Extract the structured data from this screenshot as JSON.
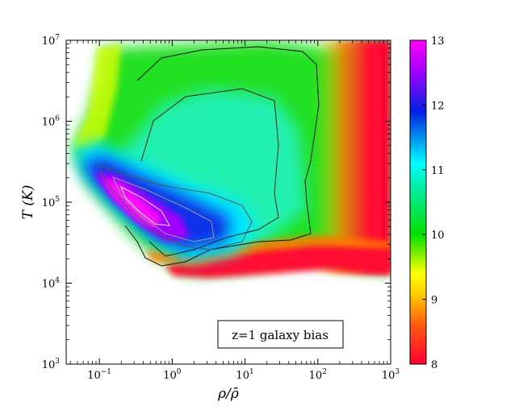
{
  "chart_data": {
    "type": "heatmap",
    "xlabel": "ρ/ρ̄",
    "ylabel": "T (K)",
    "x_scale": "log",
    "y_scale": "log",
    "xlim": [
      0.035,
      1000
    ],
    "ylim": [
      1000,
      10000000
    ],
    "x_ticks": [
      {
        "value": 0.1,
        "base": "10",
        "exp": "−1"
      },
      {
        "value": 1,
        "base": "10",
        "exp": "0"
      },
      {
        "value": 10,
        "base": "10",
        "exp": "1"
      },
      {
        "value": 100,
        "base": "10",
        "exp": "2"
      },
      {
        "value": 1000,
        "base": "10",
        "exp": "3"
      }
    ],
    "y_ticks": [
      {
        "value": 1000,
        "base": "10",
        "exp": "3"
      },
      {
        "value": 10000,
        "base": "10",
        "exp": "4"
      },
      {
        "value": 100000,
        "base": "10",
        "exp": "5"
      },
      {
        "value": 1000000,
        "base": "10",
        "exp": "6"
      },
      {
        "value": 10000000,
        "base": "10",
        "exp": "7"
      }
    ],
    "annotation": "z=1 galaxy bias",
    "colorbar": {
      "min": 8,
      "max": 13,
      "ticks": [
        "8",
        "9",
        "10",
        "11",
        "12",
        "13"
      ],
      "colors": [
        "#ff0030",
        "#ff7a00",
        "#ffff00",
        "#00dd00",
        "#00ffff",
        "#0000dd",
        "#ff00ff"
      ]
    },
    "grid": false,
    "legend": "none"
  }
}
